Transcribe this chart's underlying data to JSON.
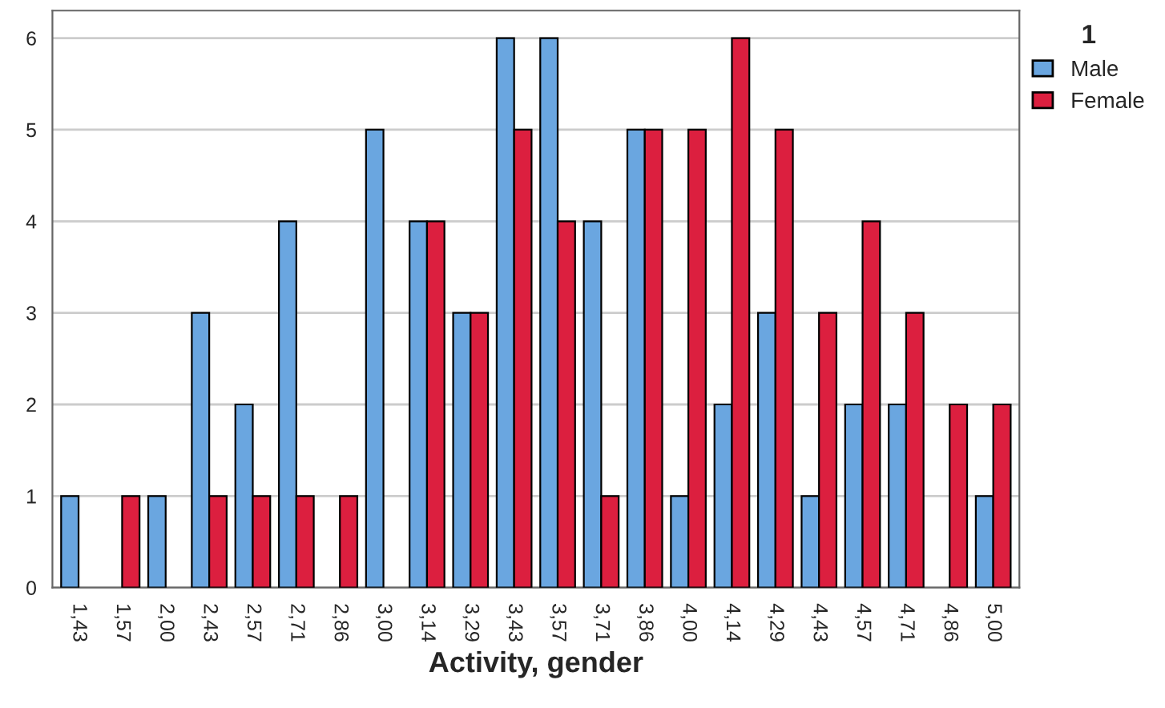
{
  "chart_data": {
    "type": "bar",
    "xlabel": "Activity, gender",
    "legend_title": "1",
    "categories": [
      "1,43",
      "1,57",
      "2,00",
      "2,43",
      "2,57",
      "2,71",
      "2,86",
      "3,00",
      "3,14",
      "3,29",
      "3,43",
      "3,57",
      "3,71",
      "3,86",
      "4,00",
      "4,14",
      "4,29",
      "4,43",
      "4,57",
      "4,71",
      "4,86",
      "5,00"
    ],
    "series": [
      {
        "name": "Male",
        "color": "#6aa6e0",
        "values": [
          1,
          null,
          1,
          3,
          2,
          4,
          null,
          5,
          4,
          3,
          6,
          6,
          4,
          5,
          1,
          2,
          3,
          1,
          2,
          2,
          null,
          1
        ]
      },
      {
        "name": "Female",
        "color": "#dc1f3f",
        "values": [
          null,
          1,
          null,
          1,
          1,
          1,
          1,
          null,
          4,
          3,
          5,
          4,
          1,
          5,
          5,
          6,
          5,
          3,
          4,
          3,
          2,
          2
        ]
      }
    ],
    "ylim": [
      0,
      6.3
    ],
    "yticks": [
      0,
      1,
      2,
      3,
      4,
      5,
      6
    ],
    "grid": "y",
    "legend": "top right"
  }
}
